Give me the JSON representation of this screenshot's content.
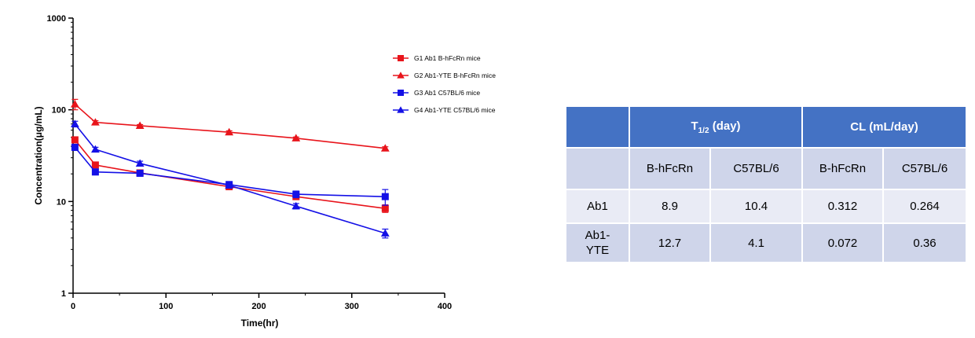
{
  "chart_data": {
    "type": "line",
    "xlabel": "Time(hr)",
    "ylabel": "Concentration(μg/mL)",
    "xlim": [
      0,
      400
    ],
    "ylim": [
      1,
      1000
    ],
    "yscale": "log",
    "x_ticks": [
      "0",
      "100",
      "200",
      "300",
      "400"
    ],
    "y_ticks": [
      "1",
      "10",
      "100",
      "1000"
    ],
    "legend_position": "top-right",
    "series": [
      {
        "name": "G1 Ab1 B-hFcRn mice",
        "color": "#e8141b",
        "marker": "square",
        "x": [
          2,
          24,
          72,
          168,
          240,
          336
        ],
        "y": [
          47,
          25,
          20.5,
          14.5,
          11.3,
          8.4
        ],
        "err": [
          3,
          1.5,
          1,
          1,
          0.8,
          0.8
        ]
      },
      {
        "name": "G2 Ab1-YTE B-hFcRn mice",
        "color": "#e8141b",
        "marker": "triangle",
        "x": [
          2,
          24,
          72,
          168,
          240,
          336
        ],
        "y": [
          115,
          73,
          67,
          57,
          49,
          38
        ],
        "err": [
          15,
          3,
          2,
          2,
          1.5,
          1.5
        ]
      },
      {
        "name": "G3 Ab1 C57BL/6 mice",
        "color": "#1410e6",
        "marker": "square",
        "x": [
          2,
          24,
          72,
          168,
          240,
          336
        ],
        "y": [
          39,
          21,
          20.3,
          15.3,
          12,
          11.3
        ],
        "err": [
          3,
          1.5,
          1,
          1,
          1,
          2.2
        ]
      },
      {
        "name": "G4 Ab1-YTE C57BL/6 mice",
        "color": "#1410e6",
        "marker": "triangle",
        "x": [
          2,
          24,
          72,
          168,
          240,
          336
        ],
        "y": [
          70,
          37,
          26,
          15,
          8.9,
          4.5
        ],
        "err": [
          5,
          2,
          1.5,
          1,
          0.6,
          0.5
        ]
      }
    ]
  },
  "table": {
    "header": {
      "t_half_main": "T",
      "t_half_sub": "1/2",
      "t_half_unit": " (day)",
      "cl": "CL (mL/day)"
    },
    "subheaders": [
      "B-hFcRn",
      "C57BL/6",
      "B-hFcRn",
      "C57BL/6"
    ],
    "rows": [
      {
        "label": "Ab1",
        "values": [
          "8.9",
          "10.4",
          "0.312",
          "0.264"
        ]
      },
      {
        "label": "Ab1-YTE",
        "values": [
          "12.7",
          "4.1",
          "0.072",
          "0.36"
        ]
      }
    ]
  }
}
